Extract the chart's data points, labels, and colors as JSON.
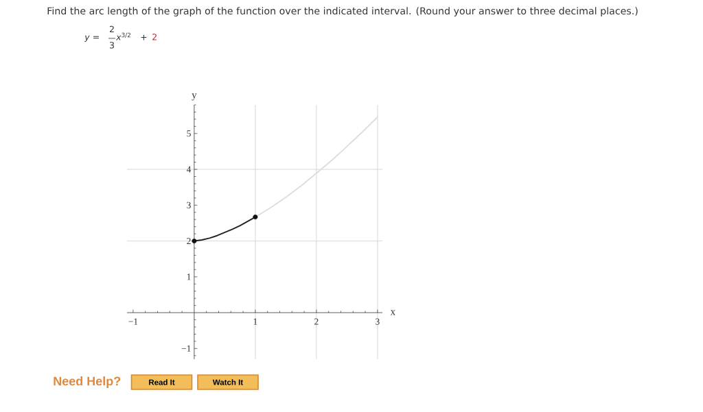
{
  "chart_data": {
    "type": "line",
    "title": "Find the arc length of the graph of the function over the indicated interval. (Round your answer to three decimal places.)",
    "xlabel": "x",
    "ylabel": "y",
    "annotations": [
      "*y* =",
      "2",
      "3",
      "*x*$^{3/2}$",
      "+",
      "2",
      "Need Help?",
      "Read It",
      "Watch It"
    ],
    "series": [
      {
        "color": "#dddddd",
        "x": [
          1,
          1.25,
          1.5,
          1.75,
          2,
          2.25,
          2.5,
          2.75,
          3
        ],
        "values": [
          2.67,
          2.93,
          3.22,
          3.54,
          3.89,
          4.25,
          4.64,
          5.04,
          5.46
        ]
      },
      {
        "color": "#222222",
        "x": [
          0,
          0.125,
          0.25,
          0.375,
          0.5,
          0.625,
          0.75,
          0.875,
          1
        ],
        "values": [
          2,
          2.03,
          2.08,
          2.15,
          2.24,
          2.33,
          2.43,
          2.55,
          2.67
        ]
      },
      {
        "type": "scatter",
        "color": "#111111",
        "marker": "circle",
        "x": [
          0,
          1
        ],
        "values": [
          2,
          2.67
        ]
      }
    ],
    "xlim": [
      -1.1,
      3.08
    ],
    "ylim": [
      -1.3,
      5.8
    ],
    "xticks": [
      {
        "value": -1,
        "label": "−1"
      },
      {
        "value": -0.8,
        "label": null
      },
      {
        "value": -0.6,
        "label": null
      },
      {
        "value": -0.4,
        "label": null
      },
      {
        "value": -0.2,
        "label": null
      },
      {
        "value": 0.2,
        "label": null
      },
      {
        "value": 0.4,
        "label": null
      },
      {
        "value": 0.6,
        "label": null
      },
      {
        "value": 0.8,
        "label": null
      },
      1,
      {
        "value": 1.2,
        "label": null
      },
      {
        "value": 1.4,
        "label": null
      },
      {
        "value": 1.6,
        "label": null
      },
      {
        "value": 1.8,
        "label": null
      },
      2,
      {
        "value": 2.2,
        "label": null
      },
      {
        "value": 2.4,
        "label": null
      },
      {
        "value": 2.6,
        "label": null
      },
      {
        "value": 2.8,
        "label": null
      },
      3
    ],
    "yticks": [
      {
        "value": -1.2,
        "label": null
      },
      {
        "value": -1,
        "label": "−1"
      },
      {
        "value": -0.8,
        "label": null
      },
      {
        "value": -0.6,
        "label": null
      },
      {
        "value": -0.4,
        "label": null
      },
      {
        "value": -0.2,
        "label": null
      },
      {
        "value": 0.2,
        "label": null
      },
      {
        "value": 0.4,
        "label": null
      },
      {
        "value": 0.6,
        "label": null
      },
      {
        "value": 0.8,
        "label": null
      },
      1,
      {
        "value": 1.2,
        "label": null
      },
      {
        "value": 1.4,
        "label": null
      },
      {
        "value": 1.6,
        "label": null
      },
      {
        "value": 1.8,
        "label": null
      },
      2,
      {
        "value": 2.2,
        "label": null
      },
      {
        "value": 2.4,
        "label": null
      },
      {
        "value": 2.6,
        "label": null
      },
      {
        "value": 2.8,
        "label": null
      },
      3,
      {
        "value": 3.2,
        "label": null
      },
      {
        "value": 3.4,
        "label": null
      },
      {
        "value": 3.6,
        "label": null
      },
      {
        "value": 3.8,
        "label": null
      },
      4,
      {
        "value": 4.2,
        "label": null
      },
      {
        "value": 4.4,
        "label": null
      },
      {
        "value": 4.6,
        "label": null
      },
      {
        "value": 4.8,
        "label": null
      },
      5,
      {
        "value": 5.2,
        "label": null
      },
      {
        "value": 5.4,
        "label": null
      },
      {
        "value": 5.6,
        "label": null
      },
      {
        "value": 5.8,
        "label": null
      }
    ],
    "ref_lines": [
      {
        "axis": "x",
        "value": 1,
        "color": "#d4d4d4"
      },
      {
        "axis": "x",
        "value": 2,
        "color": "#d4d4d4"
      },
      {
        "axis": "x",
        "value": 3,
        "color": "#d4d4d4"
      },
      {
        "axis": "y",
        "value": 2,
        "color": "#d4d4d4"
      },
      {
        "axis": "y",
        "value": 4,
        "color": "#d4d4d4"
      }
    ]
  }
}
